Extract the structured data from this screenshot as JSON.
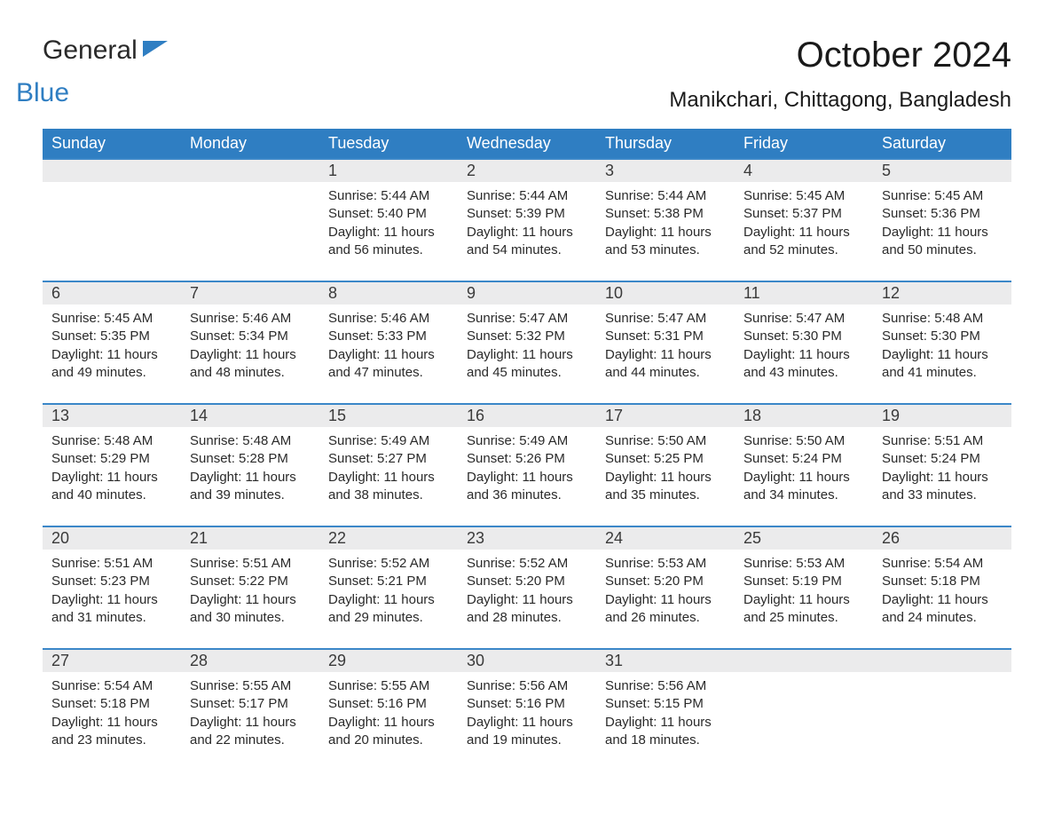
{
  "logo": {
    "part1": "General",
    "part2": "Blue"
  },
  "header": {
    "month_title": "October 2024",
    "location": "Manikchari, Chittagong, Bangladesh"
  },
  "colors": {
    "header_bg": "#2f7ec2",
    "header_text": "#ffffff",
    "day_number_bg": "#ebebec",
    "day_border": "#3b87c8",
    "text": "#2a2a2a",
    "logo_blue": "#2f7ec2"
  },
  "weekdays": [
    "Sunday",
    "Monday",
    "Tuesday",
    "Wednesday",
    "Thursday",
    "Friday",
    "Saturday"
  ],
  "weeks": [
    [
      {
        "day": "",
        "sunrise": "",
        "sunset": "",
        "daylight1": "",
        "daylight2": ""
      },
      {
        "day": "",
        "sunrise": "",
        "sunset": "",
        "daylight1": "",
        "daylight2": ""
      },
      {
        "day": "1",
        "sunrise": "Sunrise: 5:44 AM",
        "sunset": "Sunset: 5:40 PM",
        "daylight1": "Daylight: 11 hours",
        "daylight2": "and 56 minutes."
      },
      {
        "day": "2",
        "sunrise": "Sunrise: 5:44 AM",
        "sunset": "Sunset: 5:39 PM",
        "daylight1": "Daylight: 11 hours",
        "daylight2": "and 54 minutes."
      },
      {
        "day": "3",
        "sunrise": "Sunrise: 5:44 AM",
        "sunset": "Sunset: 5:38 PM",
        "daylight1": "Daylight: 11 hours",
        "daylight2": "and 53 minutes."
      },
      {
        "day": "4",
        "sunrise": "Sunrise: 5:45 AM",
        "sunset": "Sunset: 5:37 PM",
        "daylight1": "Daylight: 11 hours",
        "daylight2": "and 52 minutes."
      },
      {
        "day": "5",
        "sunrise": "Sunrise: 5:45 AM",
        "sunset": "Sunset: 5:36 PM",
        "daylight1": "Daylight: 11 hours",
        "daylight2": "and 50 minutes."
      }
    ],
    [
      {
        "day": "6",
        "sunrise": "Sunrise: 5:45 AM",
        "sunset": "Sunset: 5:35 PM",
        "daylight1": "Daylight: 11 hours",
        "daylight2": "and 49 minutes."
      },
      {
        "day": "7",
        "sunrise": "Sunrise: 5:46 AM",
        "sunset": "Sunset: 5:34 PM",
        "daylight1": "Daylight: 11 hours",
        "daylight2": "and 48 minutes."
      },
      {
        "day": "8",
        "sunrise": "Sunrise: 5:46 AM",
        "sunset": "Sunset: 5:33 PM",
        "daylight1": "Daylight: 11 hours",
        "daylight2": "and 47 minutes."
      },
      {
        "day": "9",
        "sunrise": "Sunrise: 5:47 AM",
        "sunset": "Sunset: 5:32 PM",
        "daylight1": "Daylight: 11 hours",
        "daylight2": "and 45 minutes."
      },
      {
        "day": "10",
        "sunrise": "Sunrise: 5:47 AM",
        "sunset": "Sunset: 5:31 PM",
        "daylight1": "Daylight: 11 hours",
        "daylight2": "and 44 minutes."
      },
      {
        "day": "11",
        "sunrise": "Sunrise: 5:47 AM",
        "sunset": "Sunset: 5:30 PM",
        "daylight1": "Daylight: 11 hours",
        "daylight2": "and 43 minutes."
      },
      {
        "day": "12",
        "sunrise": "Sunrise: 5:48 AM",
        "sunset": "Sunset: 5:30 PM",
        "daylight1": "Daylight: 11 hours",
        "daylight2": "and 41 minutes."
      }
    ],
    [
      {
        "day": "13",
        "sunrise": "Sunrise: 5:48 AM",
        "sunset": "Sunset: 5:29 PM",
        "daylight1": "Daylight: 11 hours",
        "daylight2": "and 40 minutes."
      },
      {
        "day": "14",
        "sunrise": "Sunrise: 5:48 AM",
        "sunset": "Sunset: 5:28 PM",
        "daylight1": "Daylight: 11 hours",
        "daylight2": "and 39 minutes."
      },
      {
        "day": "15",
        "sunrise": "Sunrise: 5:49 AM",
        "sunset": "Sunset: 5:27 PM",
        "daylight1": "Daylight: 11 hours",
        "daylight2": "and 38 minutes."
      },
      {
        "day": "16",
        "sunrise": "Sunrise: 5:49 AM",
        "sunset": "Sunset: 5:26 PM",
        "daylight1": "Daylight: 11 hours",
        "daylight2": "and 36 minutes."
      },
      {
        "day": "17",
        "sunrise": "Sunrise: 5:50 AM",
        "sunset": "Sunset: 5:25 PM",
        "daylight1": "Daylight: 11 hours",
        "daylight2": "and 35 minutes."
      },
      {
        "day": "18",
        "sunrise": "Sunrise: 5:50 AM",
        "sunset": "Sunset: 5:24 PM",
        "daylight1": "Daylight: 11 hours",
        "daylight2": "and 34 minutes."
      },
      {
        "day": "19",
        "sunrise": "Sunrise: 5:51 AM",
        "sunset": "Sunset: 5:24 PM",
        "daylight1": "Daylight: 11 hours",
        "daylight2": "and 33 minutes."
      }
    ],
    [
      {
        "day": "20",
        "sunrise": "Sunrise: 5:51 AM",
        "sunset": "Sunset: 5:23 PM",
        "daylight1": "Daylight: 11 hours",
        "daylight2": "and 31 minutes."
      },
      {
        "day": "21",
        "sunrise": "Sunrise: 5:51 AM",
        "sunset": "Sunset: 5:22 PM",
        "daylight1": "Daylight: 11 hours",
        "daylight2": "and 30 minutes."
      },
      {
        "day": "22",
        "sunrise": "Sunrise: 5:52 AM",
        "sunset": "Sunset: 5:21 PM",
        "daylight1": "Daylight: 11 hours",
        "daylight2": "and 29 minutes."
      },
      {
        "day": "23",
        "sunrise": "Sunrise: 5:52 AM",
        "sunset": "Sunset: 5:20 PM",
        "daylight1": "Daylight: 11 hours",
        "daylight2": "and 28 minutes."
      },
      {
        "day": "24",
        "sunrise": "Sunrise: 5:53 AM",
        "sunset": "Sunset: 5:20 PM",
        "daylight1": "Daylight: 11 hours",
        "daylight2": "and 26 minutes."
      },
      {
        "day": "25",
        "sunrise": "Sunrise: 5:53 AM",
        "sunset": "Sunset: 5:19 PM",
        "daylight1": "Daylight: 11 hours",
        "daylight2": "and 25 minutes."
      },
      {
        "day": "26",
        "sunrise": "Sunrise: 5:54 AM",
        "sunset": "Sunset: 5:18 PM",
        "daylight1": "Daylight: 11 hours",
        "daylight2": "and 24 minutes."
      }
    ],
    [
      {
        "day": "27",
        "sunrise": "Sunrise: 5:54 AM",
        "sunset": "Sunset: 5:18 PM",
        "daylight1": "Daylight: 11 hours",
        "daylight2": "and 23 minutes."
      },
      {
        "day": "28",
        "sunrise": "Sunrise: 5:55 AM",
        "sunset": "Sunset: 5:17 PM",
        "daylight1": "Daylight: 11 hours",
        "daylight2": "and 22 minutes."
      },
      {
        "day": "29",
        "sunrise": "Sunrise: 5:55 AM",
        "sunset": "Sunset: 5:16 PM",
        "daylight1": "Daylight: 11 hours",
        "daylight2": "and 20 minutes."
      },
      {
        "day": "30",
        "sunrise": "Sunrise: 5:56 AM",
        "sunset": "Sunset: 5:16 PM",
        "daylight1": "Daylight: 11 hours",
        "daylight2": "and 19 minutes."
      },
      {
        "day": "31",
        "sunrise": "Sunrise: 5:56 AM",
        "sunset": "Sunset: 5:15 PM",
        "daylight1": "Daylight: 11 hours",
        "daylight2": "and 18 minutes."
      },
      {
        "day": "",
        "sunrise": "",
        "sunset": "",
        "daylight1": "",
        "daylight2": ""
      },
      {
        "day": "",
        "sunrise": "",
        "sunset": "",
        "daylight1": "",
        "daylight2": ""
      }
    ]
  ]
}
